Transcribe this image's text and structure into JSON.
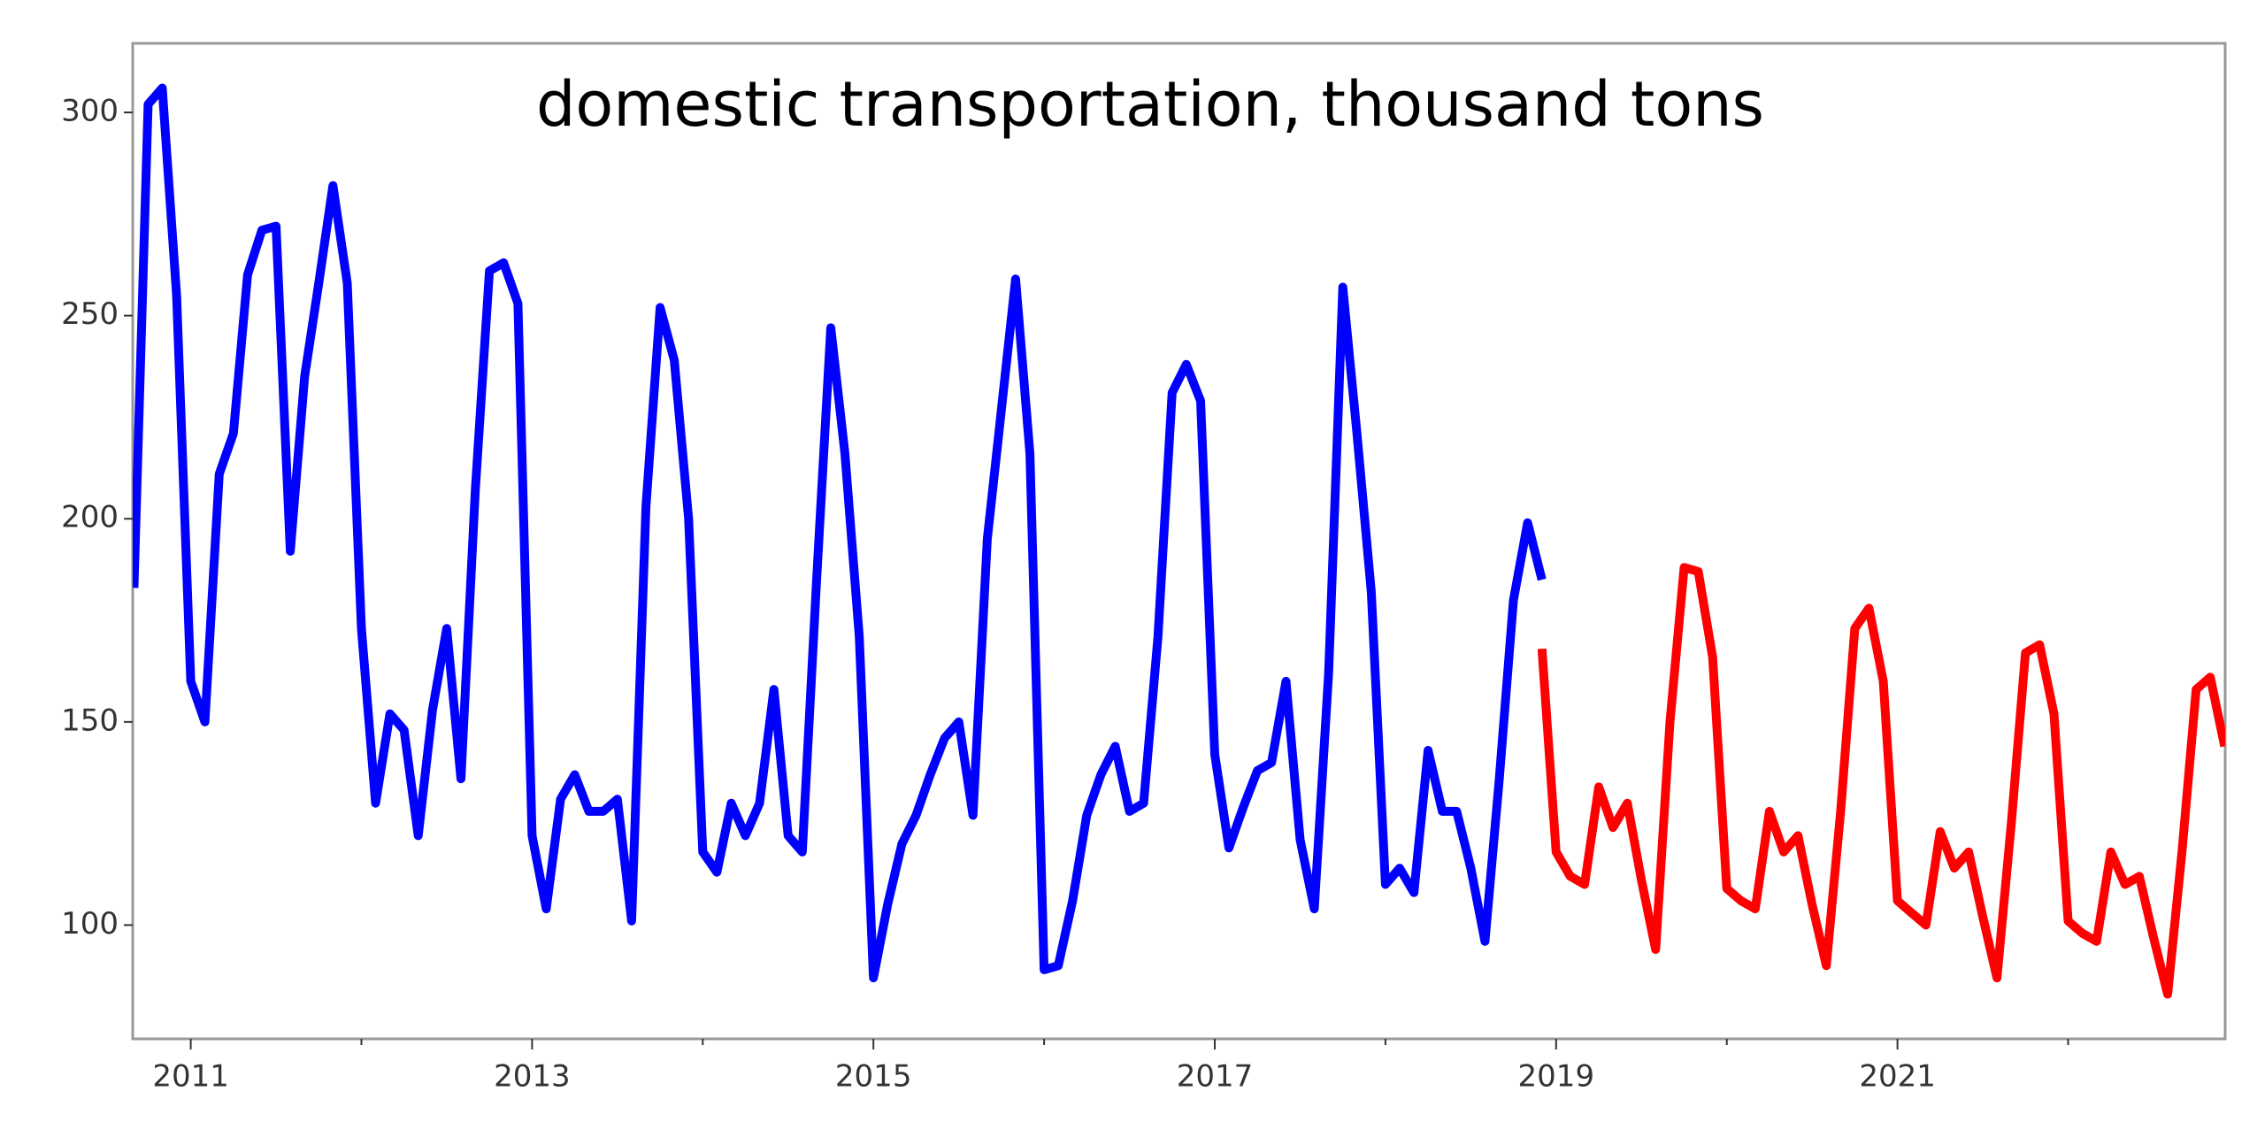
{
  "chart_data": {
    "type": "line",
    "title": "domestic transportation, thousand tons",
    "series": [
      {
        "color": "#0000ff",
        "x": [
          2010.667,
          2010.75,
          2010.833,
          2010.917,
          2011,
          2011.083,
          2011.167,
          2011.25,
          2011.333,
          2011.417,
          2011.5,
          2011.583,
          2011.667,
          2011.75,
          2011.833,
          2011.917,
          2012,
          2012.083,
          2012.167,
          2012.25,
          2012.333,
          2012.417,
          2012.5,
          2012.583,
          2012.667,
          2012.75,
          2012.833,
          2012.917,
          2013,
          2013.083,
          2013.167,
          2013.25,
          2013.333,
          2013.417,
          2013.5,
          2013.583,
          2013.667,
          2013.75,
          2013.833,
          2013.917,
          2014,
          2014.083,
          2014.167,
          2014.25,
          2014.333,
          2014.417,
          2014.5,
          2014.583,
          2014.667,
          2014.75,
          2014.833,
          2014.917,
          2015,
          2015.083,
          2015.167,
          2015.25,
          2015.333,
          2015.417,
          2015.5,
          2015.583,
          2015.667,
          2015.75,
          2015.833,
          2015.917,
          2016,
          2016.083,
          2016.167,
          2016.25,
          2016.333,
          2016.417,
          2016.5,
          2016.583,
          2016.667,
          2016.75,
          2016.833,
          2016.917,
          2017,
          2017.083,
          2017.167,
          2017.25,
          2017.333,
          2017.417,
          2017.5,
          2017.583,
          2017.667,
          2017.75,
          2017.833,
          2017.917,
          2018,
          2018.083,
          2018.167,
          2018.25,
          2018.333,
          2018.417,
          2018.5,
          2018.583,
          2018.667,
          2018.75,
          2018.833,
          2018.917
        ],
        "values": [
          183,
          302,
          306,
          255,
          160,
          150,
          211,
          221,
          260,
          271,
          272,
          192,
          235,
          258,
          282,
          258,
          173,
          130,
          152,
          148,
          122,
          153,
          173,
          136,
          207,
          261,
          263,
          253,
          122,
          104,
          131,
          137,
          128,
          128,
          131,
          101,
          203,
          252,
          239,
          200,
          118,
          113,
          130,
          122,
          130,
          158,
          122,
          118,
          185,
          247,
          216,
          171,
          87,
          105,
          120,
          127,
          137,
          146,
          150,
          127,
          195,
          227,
          259,
          216,
          89,
          90,
          106,
          127,
          137,
          144,
          128,
          130,
          171,
          231,
          238,
          229,
          142,
          119,
          129,
          138,
          140,
          160,
          121,
          104,
          162,
          257,
          221,
          182,
          110,
          114,
          108,
          143,
          128,
          128,
          114,
          96,
          136,
          180,
          199,
          185
        ]
      },
      {
        "color": "#ff0000",
        "x": [
          2018.917,
          2019,
          2019.083,
          2019.167,
          2019.25,
          2019.333,
          2019.417,
          2019.5,
          2019.583,
          2019.667,
          2019.75,
          2019.833,
          2019.917,
          2020,
          2020.083,
          2020.167,
          2020.25,
          2020.333,
          2020.417,
          2020.5,
          2020.583,
          2020.667,
          2020.75,
          2020.833,
          2020.917,
          2021,
          2021.083,
          2021.167,
          2021.25,
          2021.333,
          2021.417,
          2021.5,
          2021.583,
          2021.667,
          2021.75,
          2021.833,
          2021.917,
          2022,
          2022.083,
          2022.167,
          2022.25,
          2022.333,
          2022.417,
          2022.5,
          2022.583,
          2022.667,
          2022.75,
          2022.833,
          2022.917
        ],
        "values": [
          168,
          118,
          112,
          110,
          134,
          124,
          130,
          111,
          94,
          150,
          188,
          187,
          166,
          109,
          106,
          104,
          128,
          118,
          122,
          105,
          90,
          128,
          173,
          178,
          160,
          106,
          103,
          100,
          123,
          114,
          118,
          102,
          87,
          125,
          167,
          169,
          152,
          101,
          98,
          96,
          118,
          110,
          112,
          97,
          83,
          118,
          158,
          161,
          144
        ]
      }
    ],
    "xlim": [
      2010.66,
      2022.92
    ],
    "xticks": [
      2011,
      2013,
      2015,
      2017,
      2019,
      2021
    ],
    "xminorticks": [
      2012,
      2014,
      2016,
      2018,
      2020,
      2022
    ],
    "ylim": [
      72,
      317
    ],
    "yticks": [
      100,
      150,
      200,
      250,
      300
    ],
    "grid": false
  }
}
